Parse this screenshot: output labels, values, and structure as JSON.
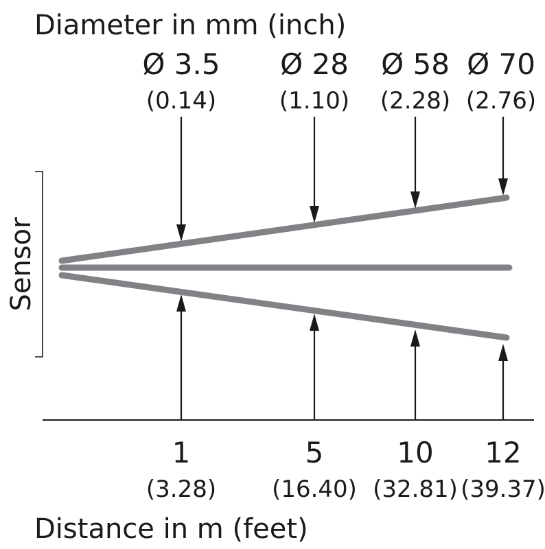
{
  "diagram": {
    "diameter_title": "Diameter in mm (inch)",
    "distance_title": "Distance in m (feet)",
    "sensor_label": "Sensor",
    "measurements": [
      {
        "diameter": "Ø 3.5",
        "diameter_inch": "(0.14)",
        "distance": "1",
        "distance_feet": "(3.28)"
      },
      {
        "diameter": "Ø 28",
        "diameter_inch": "(1.10)",
        "distance": "5",
        "distance_feet": "(16.40)"
      },
      {
        "diameter": "Ø 58",
        "diameter_inch": "(2.28)",
        "distance": "10",
        "distance_feet": "(32.81)"
      },
      {
        "diameter": "Ø 70",
        "diameter_inch": "(2.76)",
        "distance": "12",
        "distance_feet": "(39.37)"
      }
    ]
  }
}
